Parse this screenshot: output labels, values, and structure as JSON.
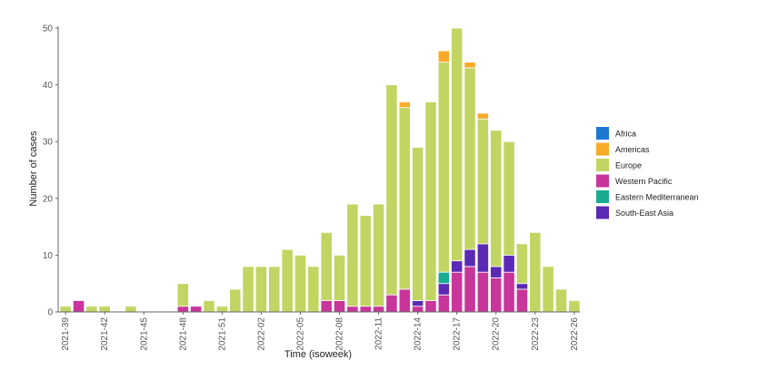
{
  "chart_data": {
    "type": "bar",
    "stacked": true,
    "title": "",
    "xlabel": "Time (isoweek)",
    "ylabel": "Number of cases",
    "ylim": [
      0,
      50
    ],
    "yticks": [
      0,
      10,
      20,
      30,
      40,
      50
    ],
    "grid": false,
    "legend_position": "right",
    "x_tick_labels": [
      "2021-39",
      "2021-42",
      "2021-45",
      "2021-48",
      "2021-51",
      "2022-02",
      "2022-05",
      "2022-08",
      "2022-11",
      "2022-14",
      "2022-17",
      "2022-20",
      "2022-23",
      "2022-26"
    ],
    "categories": [
      "2021-39",
      "2021-40",
      "2021-41",
      "2021-42",
      "2021-43",
      "2021-44",
      "2021-45",
      "2021-46",
      "2021-47",
      "2021-48",
      "2021-49",
      "2021-50",
      "2021-51",
      "2021-52",
      "2022-01",
      "2022-02",
      "2022-03",
      "2022-04",
      "2022-05",
      "2022-06",
      "2022-07",
      "2022-08",
      "2022-09",
      "2022-10",
      "2022-11",
      "2022-12",
      "2022-13",
      "2022-14",
      "2022-15",
      "2022-16",
      "2022-17",
      "2022-18",
      "2022-19",
      "2022-20",
      "2022-21",
      "2022-22",
      "2022-23",
      "2022-24",
      "2022-25",
      "2022-26"
    ],
    "series": [
      {
        "name": "Western Pacific",
        "color": "#c8359b",
        "values": [
          0,
          2,
          0,
          0,
          0,
          0,
          0,
          0,
          0,
          1,
          1,
          0,
          0,
          0,
          0,
          0,
          0,
          0,
          0,
          0,
          2,
          2,
          1,
          1,
          1,
          3,
          4,
          1,
          2,
          3,
          7,
          8,
          7,
          6,
          7,
          4,
          0,
          0,
          0,
          0
        ]
      },
      {
        "name": "South-East Asia",
        "color": "#5b2ab5",
        "values": [
          0,
          0,
          0,
          0,
          0,
          0,
          0,
          0,
          0,
          0,
          0,
          0,
          0,
          0,
          0,
          0,
          0,
          0,
          0,
          0,
          0,
          0,
          0,
          0,
          0,
          0,
          0,
          1,
          0,
          2,
          2,
          3,
          5,
          2,
          3,
          1,
          0,
          0,
          0,
          0
        ]
      },
      {
        "name": "Eastern Mediterranean",
        "color": "#1aab91",
        "values": [
          0,
          0,
          0,
          0,
          0,
          0,
          0,
          0,
          0,
          0,
          0,
          0,
          0,
          0,
          0,
          0,
          0,
          0,
          0,
          0,
          0,
          0,
          0,
          0,
          0,
          0,
          0,
          0,
          0,
          2,
          0,
          0,
          0,
          0,
          0,
          0,
          0,
          0,
          0,
          0
        ]
      },
      {
        "name": "Europe",
        "color": "#c2d563",
        "values": [
          1,
          0,
          1,
          1,
          0,
          1,
          0,
          0,
          0,
          4,
          0,
          2,
          1,
          4,
          8,
          8,
          8,
          11,
          10,
          8,
          12,
          8,
          18,
          16,
          18,
          37,
          32,
          27,
          35,
          37,
          41,
          32,
          22,
          24,
          20,
          7,
          14,
          8,
          4,
          2
        ]
      },
      {
        "name": "Americas",
        "color": "#f8ab28",
        "values": [
          0,
          0,
          0,
          0,
          0,
          0,
          0,
          0,
          0,
          0,
          0,
          0,
          0,
          0,
          0,
          0,
          0,
          0,
          0,
          0,
          0,
          0,
          0,
          0,
          0,
          0,
          1,
          0,
          0,
          2,
          0,
          1,
          1,
          0,
          0,
          0,
          0,
          0,
          0,
          0
        ]
      },
      {
        "name": "Africa",
        "color": "#1e78d2",
        "values": [
          0,
          0,
          0,
          0,
          0,
          0,
          0,
          0,
          0,
          0,
          0,
          0,
          0,
          0,
          0,
          0,
          0,
          0,
          0,
          0,
          0,
          0,
          0,
          0,
          0,
          0,
          0,
          0,
          0,
          0,
          0,
          0,
          0,
          0,
          0,
          0,
          0,
          0,
          0,
          0
        ]
      }
    ],
    "legend": [
      "Africa",
      "Americas",
      "Europe",
      "Western Pacific",
      "Eastern Mediterranean",
      "South-East Asia"
    ]
  }
}
